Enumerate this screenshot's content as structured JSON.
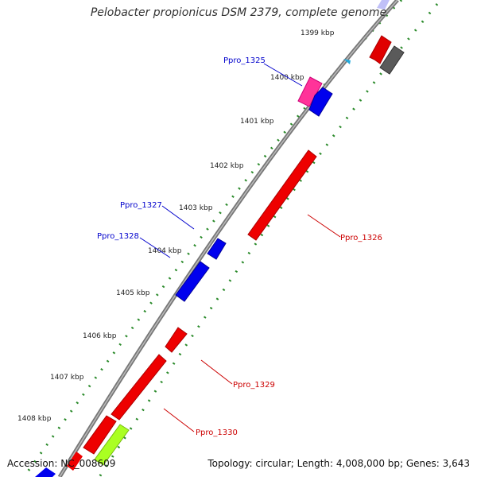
{
  "title": "Pelobacter propionicus DSM 2379, complete genome",
  "footer": {
    "accession": "Accession: NC_008609",
    "summary": "Topology: circular; Length: 4,008,000 bp; Genes: 3,643"
  },
  "ticks": [
    {
      "label": "1399 kbp"
    },
    {
      "label": "1400 kbp"
    },
    {
      "label": "1401 kbp"
    },
    {
      "label": "1402 kbp"
    },
    {
      "label": "1403 kbp"
    },
    {
      "label": "1404 kbp"
    },
    {
      "label": "1405 kbp"
    },
    {
      "label": "1406 kbp"
    },
    {
      "label": "1407 kbp"
    },
    {
      "label": "1408 kbp"
    }
  ],
  "genes": [
    {
      "name": "Ppro_1325",
      "color": "#0000cc",
      "strand": "forward"
    },
    {
      "name": "Ppro_1326",
      "color": "#cc0000",
      "strand": "reverse"
    },
    {
      "name": "Ppro_1327",
      "color": "#0000cc",
      "strand": "forward"
    },
    {
      "name": "Ppro_1328",
      "color": "#0000cc",
      "strand": "forward"
    },
    {
      "name": "Ppro_1329",
      "color": "#cc0000",
      "strand": "reverse"
    },
    {
      "name": "Ppro_1330",
      "color": "#cc0000",
      "strand": "reverse"
    }
  ],
  "colors": {
    "forward_gene": "#0000ff",
    "reverse_gene": "#ff0000",
    "other_gene_pink": "#ff33aa",
    "other_gene_grey": "#666666",
    "other_gene_green": "#aaff33",
    "backbone": "#888888",
    "tick_dots": "#2a8a2a"
  }
}
